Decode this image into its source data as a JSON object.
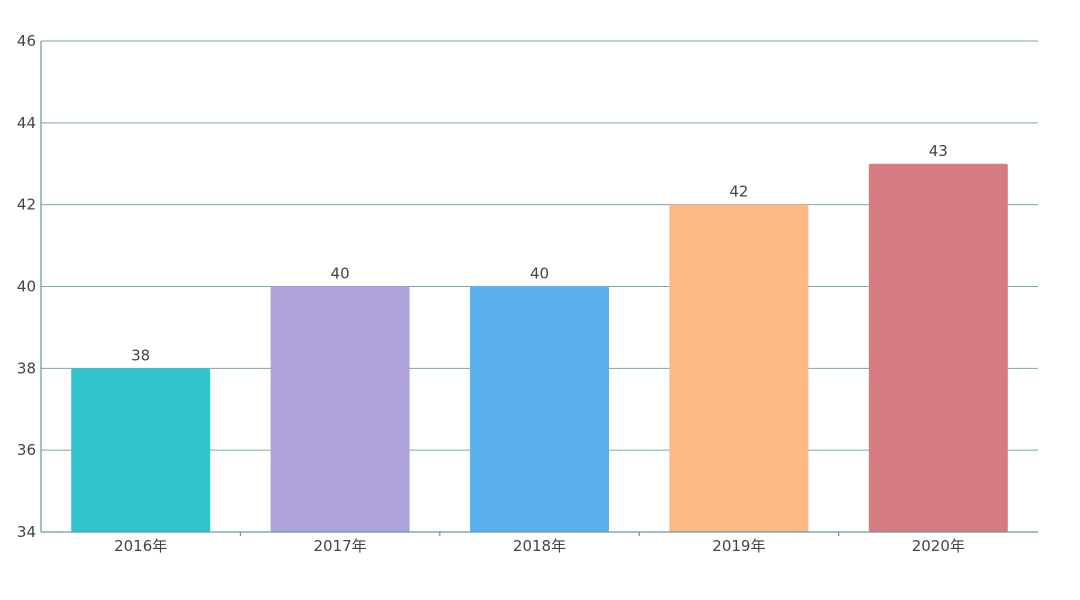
{
  "chart_data": {
    "type": "bar",
    "categories": [
      "2016年",
      "2017年",
      "2018年",
      "2019年",
      "2020年"
    ],
    "values": [
      38,
      40,
      40,
      42,
      43
    ],
    "data_labels": [
      "38",
      "40",
      "40",
      "42",
      "43"
    ],
    "bar_colors": [
      "#31c5cb",
      "#b1a4dc",
      "#5bb0ee",
      "#fdb884",
      "#d67b81"
    ],
    "ylim": [
      34,
      46
    ],
    "yticks": [
      34,
      36,
      38,
      40,
      42,
      44,
      46
    ],
    "ytick_labels": [
      "34",
      "36",
      "38",
      "40",
      "42",
      "44",
      "46"
    ],
    "grid": true,
    "title": "",
    "xlabel": "",
    "ylabel": ""
  },
  "colors": {
    "grid": "#7aa6ad",
    "axis": "#5f9aa3",
    "text": "#444444",
    "background": "#ffffff"
  }
}
